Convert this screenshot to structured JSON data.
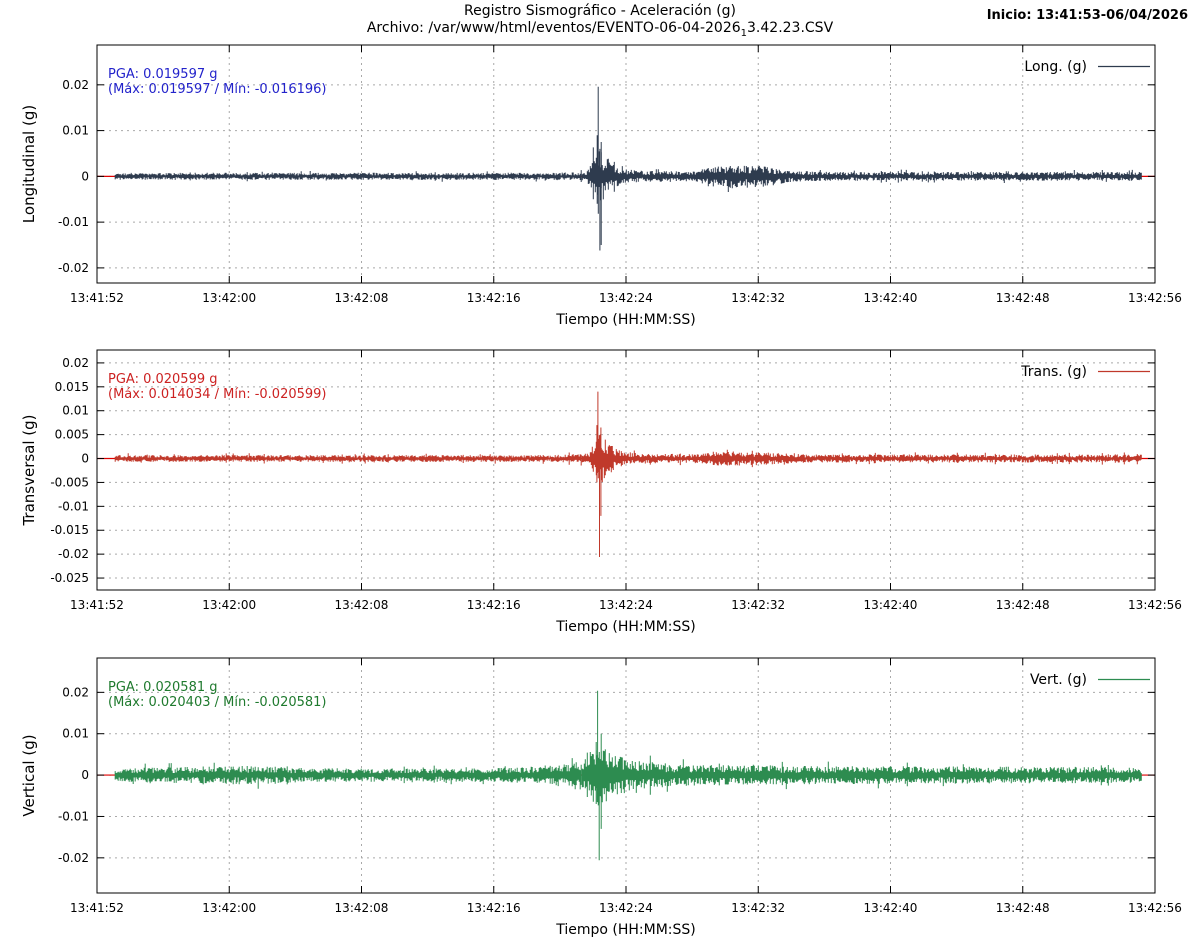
{
  "header": {
    "title": "Registro Sismográfico - Aceleración (g)",
    "file_prefix": "Archivo: /var/www/html/eventos/EVENTO-06-04-2026",
    "file_sub": "1",
    "file_suffix": "3.42.23.CSV",
    "inicio": "Inicio: 13:41:53-06/04/2026"
  },
  "axis": {
    "x_label": "Tiempo (HH:MM:SS)",
    "x_tick_labels": [
      "13:41:52",
      "13:42:00",
      "13:42:08",
      "13:42:16",
      "13:42:24",
      "13:42:32",
      "13:42:40",
      "13:42:48",
      "13:42:56"
    ],
    "x_range_s": [
      0,
      64
    ],
    "x_tick_step_s": 8,
    "data_range_s": [
      1.1,
      63.2
    ],
    "grid_color": "#a9a9a9",
    "zero_line_color": "#dd0000",
    "border_color": "#000000"
  },
  "chart_data": [
    {
      "type": "line",
      "id": "longitudinal",
      "legend": "Long. (g)",
      "ylabel": "Longitudinal (g)",
      "color": "#2e3b4e",
      "annotation_color": "#2323cb",
      "pga_g": 0.019597,
      "max_g": 0.019597,
      "min_g": -0.016196,
      "pga_label": "PGA: 0.019597 g",
      "range_label": "(Máx: 0.019597 / Mín: -0.016196)",
      "event_time": "13:42:23",
      "yticks": [
        0.02,
        0.01,
        0,
        -0.01,
        -0.02
      ],
      "ylim": [
        -0.0233,
        0.0287
      ],
      "noise_envelope": [
        [
          1.1,
          0.00065
        ],
        [
          27.5,
          0.00065
        ],
        [
          29.6,
          0.0008
        ],
        [
          30.1,
          0.004
        ],
        [
          30.45,
          0.0055
        ],
        [
          30.8,
          0.0035
        ],
        [
          31.6,
          0.0016
        ],
        [
          33,
          0.001
        ],
        [
          36,
          0.0009
        ],
        [
          37,
          0.0018
        ],
        [
          38.5,
          0.0022
        ],
        [
          40.5,
          0.0019
        ],
        [
          42,
          0.001
        ],
        [
          45,
          0.0008
        ],
        [
          63.2,
          0.0008
        ]
      ],
      "bursts": [
        [
          30.26,
          0.009,
          -0.006
        ],
        [
          30.32,
          0.0196,
          -0.004
        ],
        [
          30.42,
          0.006,
          -0.0162
        ],
        [
          30.5,
          0.0075,
          -0.015
        ]
      ]
    },
    {
      "type": "line",
      "id": "transversal",
      "legend": "Trans. (g)",
      "ylabel": "Transversal (g)",
      "color": "#c0392b",
      "annotation_color": "#cc2222",
      "pga_g": 0.020599,
      "max_g": 0.014034,
      "min_g": -0.020599,
      "pga_label": "PGA: 0.020599 g",
      "range_label": "(Máx: 0.014034 / Mín: -0.020599)",
      "event_time": "13:42:23",
      "yticks": [
        0.02,
        0.015,
        0.01,
        0.005,
        0,
        -0.005,
        -0.01,
        -0.015,
        -0.02,
        -0.025
      ],
      "ylim": [
        -0.0275,
        0.0227
      ],
      "noise_envelope": [
        [
          1.1,
          0.0006
        ],
        [
          27.5,
          0.0006
        ],
        [
          29.8,
          0.0009
        ],
        [
          30.15,
          0.0045
        ],
        [
          30.45,
          0.005
        ],
        [
          30.9,
          0.003
        ],
        [
          31.8,
          0.0013
        ],
        [
          33,
          0.0008
        ],
        [
          36.5,
          0.0008
        ],
        [
          37.5,
          0.0012
        ],
        [
          39,
          0.0013
        ],
        [
          41,
          0.001
        ],
        [
          43,
          0.0007
        ],
        [
          63.2,
          0.0007
        ]
      ],
      "bursts": [
        [
          30.24,
          0.007,
          -0.005
        ],
        [
          30.3,
          0.014,
          -0.003
        ],
        [
          30.4,
          0.004,
          -0.0206
        ],
        [
          30.48,
          0.0065,
          -0.012
        ]
      ]
    },
    {
      "type": "line",
      "id": "vertical",
      "legend": "Vert. (g)",
      "ylabel": "Vertical (g)",
      "color": "#2d8c50",
      "annotation_color": "#1f7a2e",
      "pga_g": 0.020581,
      "max_g": 0.020403,
      "min_g": -0.020581,
      "pga_label": "PGA: 0.020581 g",
      "range_label": "(Máx: 0.020403 / Mín: -0.020581)",
      "event_time": "13:42:23",
      "yticks": [
        0.02,
        0.01,
        0,
        -0.01,
        -0.02
      ],
      "ylim": [
        -0.0285,
        0.0283
      ],
      "noise_envelope": [
        [
          1.1,
          0.0014
        ],
        [
          5,
          0.0016
        ],
        [
          9,
          0.0019
        ],
        [
          13,
          0.0014
        ],
        [
          20,
          0.0013
        ],
        [
          26,
          0.0016
        ],
        [
          28.5,
          0.0025
        ],
        [
          29.7,
          0.0035
        ],
        [
          30.1,
          0.006
        ],
        [
          30.5,
          0.0065
        ],
        [
          31,
          0.005
        ],
        [
          31.8,
          0.0035
        ],
        [
          33,
          0.0028
        ],
        [
          35,
          0.0022
        ],
        [
          38,
          0.002
        ],
        [
          45,
          0.0018
        ],
        [
          55,
          0.0017
        ],
        [
          63.2,
          0.0016
        ]
      ],
      "bursts": [
        [
          30.2,
          0.008,
          -0.007
        ],
        [
          30.28,
          0.0204,
          -0.005
        ],
        [
          30.38,
          0.005,
          -0.0206
        ],
        [
          30.5,
          0.01,
          -0.013
        ]
      ]
    }
  ]
}
